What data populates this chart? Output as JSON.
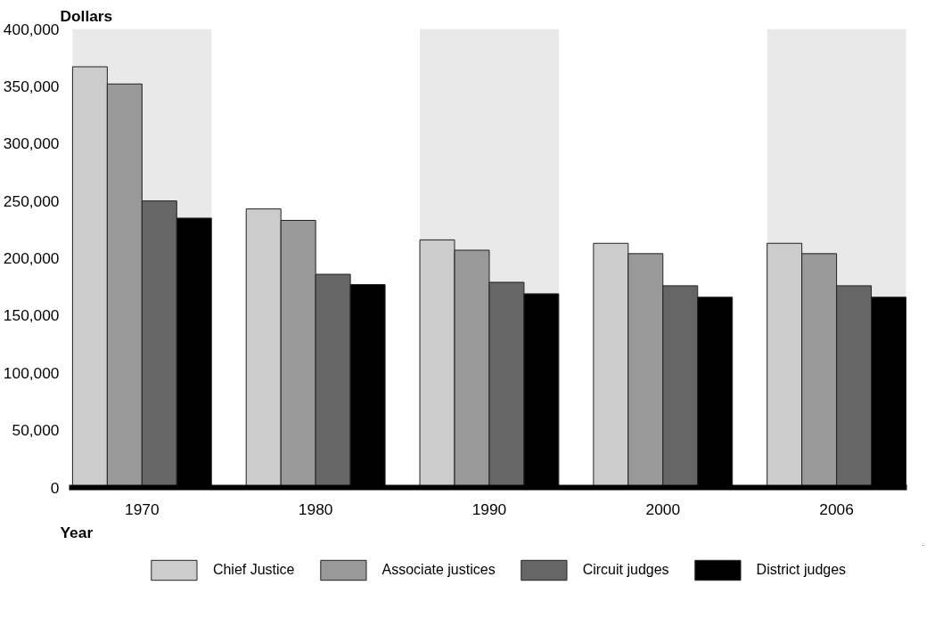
{
  "chart_data": {
    "type": "bar",
    "ylabel": "Dollars",
    "xlabel": "Year",
    "categories": [
      "1970",
      "1980",
      "1990",
      "2000",
      "2006"
    ],
    "series": [
      {
        "name": "Chief Justice",
        "color": "#cccccc",
        "values": [
          367000,
          243000,
          216000,
          213000,
          213000
        ]
      },
      {
        "name": "Associate justices",
        "color": "#999999",
        "values": [
          352000,
          233000,
          207000,
          204000,
          204000
        ]
      },
      {
        "name": "Circuit judges",
        "color": "#666666",
        "values": [
          250000,
          186000,
          179000,
          176000,
          176000
        ]
      },
      {
        "name": "District judges",
        "color": "#000000",
        "values": [
          235000,
          177000,
          169000,
          166000,
          166000
        ]
      }
    ],
    "ylim": [
      0,
      400000
    ],
    "yticks": [
      {
        "value": 0,
        "label": "0"
      },
      {
        "value": 50000,
        "label": "50,000"
      },
      {
        "value": 100000,
        "label": "100,000"
      },
      {
        "value": 150000,
        "label": "150,000"
      },
      {
        "value": 200000,
        "label": "200,000"
      },
      {
        "value": 250000,
        "label": "250,000"
      },
      {
        "value": 300000,
        "label": "300,000"
      },
      {
        "value": 350000,
        "label": "350,000"
      },
      {
        "value": 400000,
        "label": "400,000"
      }
    ],
    "bands": [
      {
        "axis": "x",
        "from": "1970",
        "to": "1970",
        "color": "#e9e9e9"
      },
      {
        "axis": "x",
        "from": "1990",
        "to": "1990",
        "color": "#e9e9e9"
      },
      {
        "axis": "x",
        "from": "2006",
        "to": "2006",
        "color": "#e9e9e9"
      }
    ],
    "grid": false,
    "legend": "bottom"
  }
}
